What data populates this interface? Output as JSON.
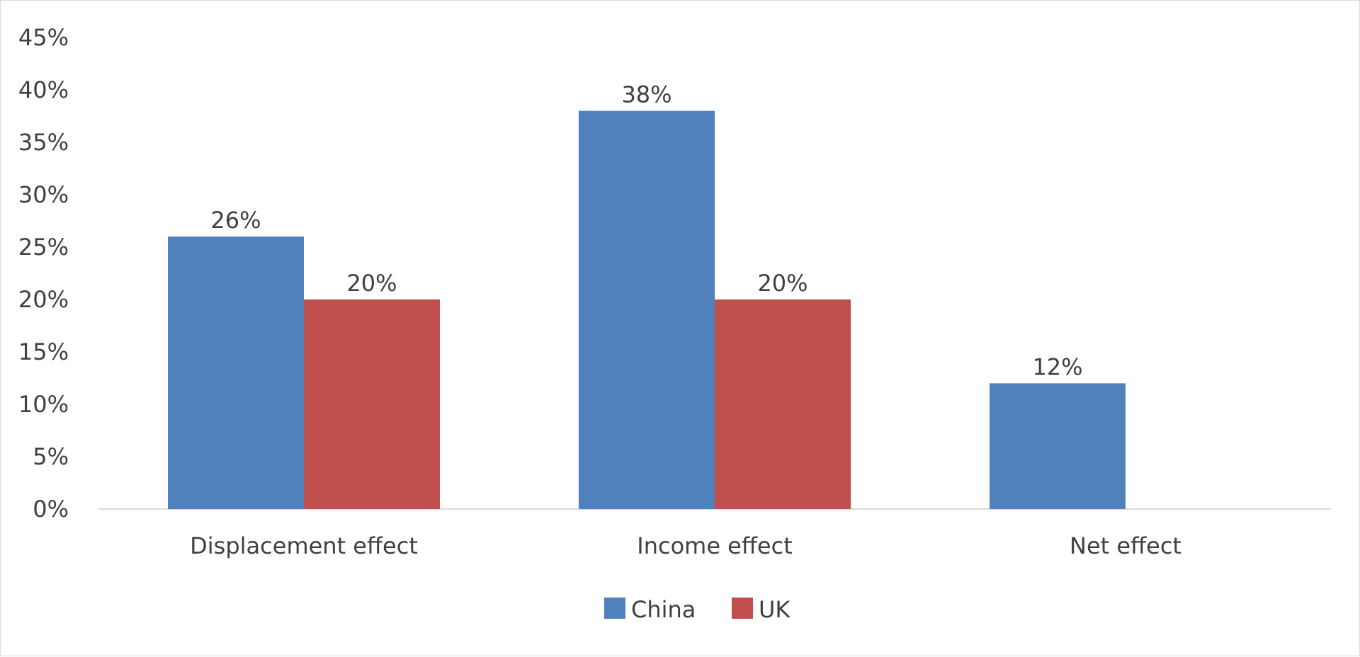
{
  "chart_data": {
    "type": "bar",
    "categories": [
      "Displacement effect",
      "Income effect",
      "Net effect"
    ],
    "series": [
      {
        "name": "China",
        "color": "#4f81bd",
        "values": [
          26,
          38,
          12
        ],
        "labels": [
          "26%",
          "38%",
          "12%"
        ]
      },
      {
        "name": "UK",
        "color": "#c0504d",
        "values": [
          20,
          20,
          null
        ],
        "labels": [
          "20%",
          "20%",
          ""
        ]
      }
    ],
    "ylim": [
      0,
      45
    ],
    "ytick_step": 5,
    "ytick_labels": [
      "0%",
      "5%",
      "10%",
      "15%",
      "20%",
      "25%",
      "30%",
      "35%",
      "40%",
      "45%"
    ],
    "title": "",
    "xlabel": "",
    "ylabel": "",
    "grid": false,
    "legend_position": "bottom"
  }
}
